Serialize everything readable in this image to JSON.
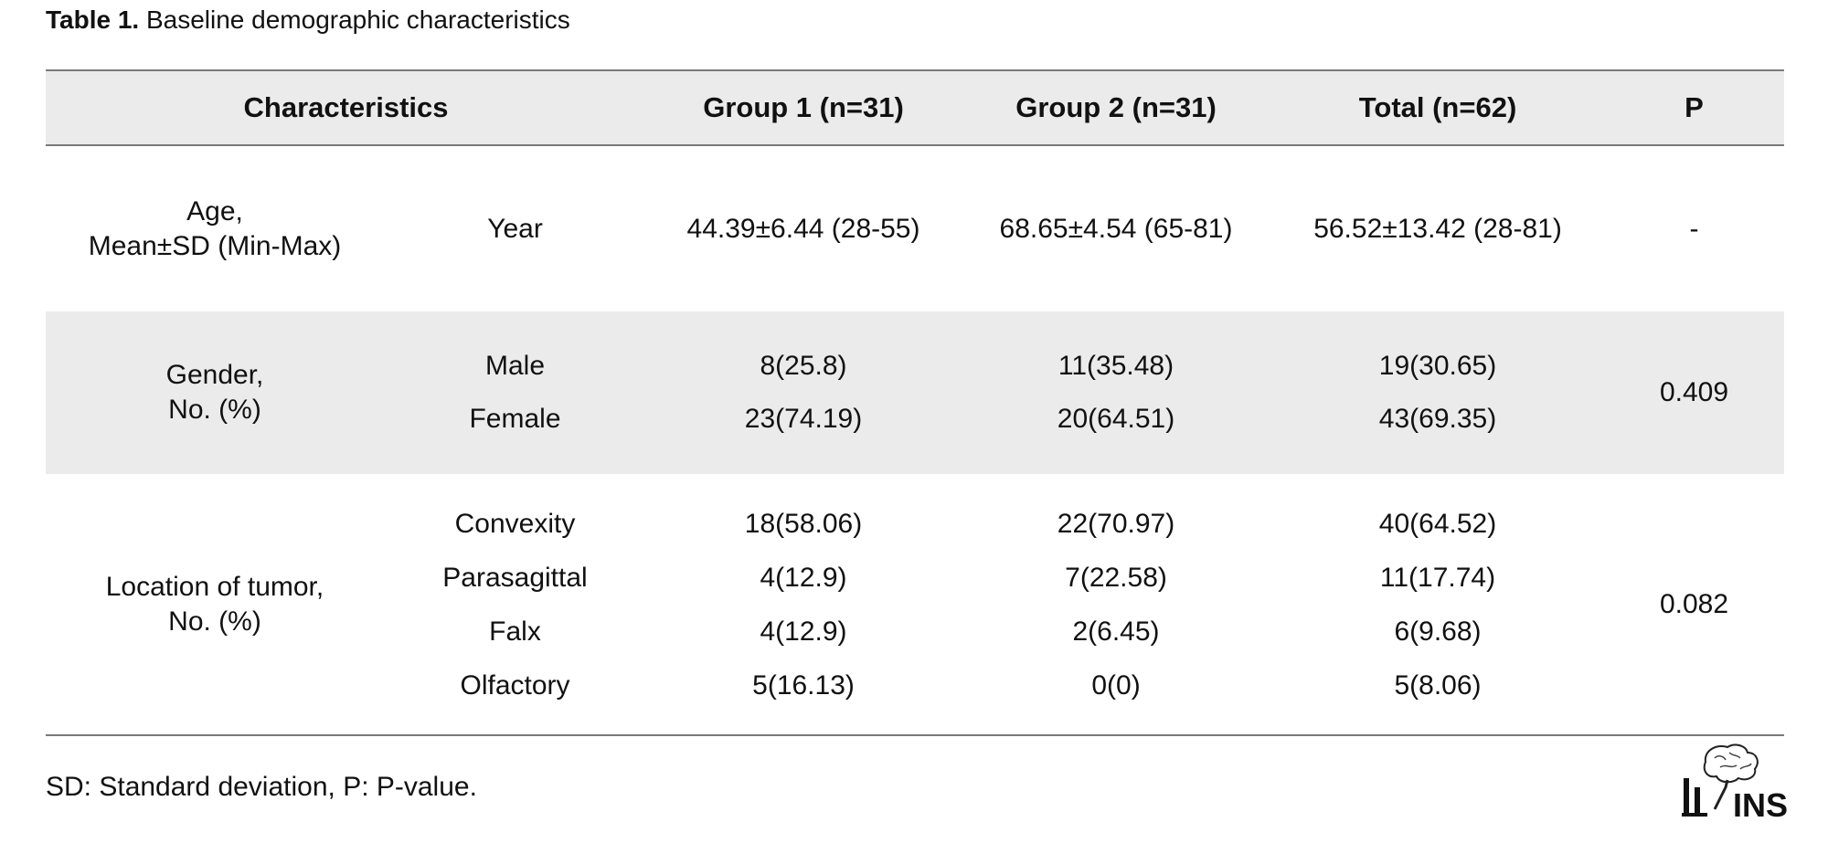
{
  "caption": {
    "label": "Table 1.",
    "text": "Baseline demographic characteristics"
  },
  "table": {
    "headers": {
      "characteristics": "Characteristics",
      "group1": "Group 1 (n=31)",
      "group2": "Group 2 (n=31)",
      "total": "Total (n=62)",
      "p": "P"
    },
    "age": {
      "label_line1": "Age,",
      "label_line2": "Mean±SD (Min-Max)",
      "sub": "Year",
      "group1": "44.39±6.44 (28-55)",
      "group2": "68.65±4.54 (65-81)",
      "total": "56.52±13.42 (28-81)",
      "p": "-"
    },
    "gender": {
      "label_line1": "Gender,",
      "label_line2": "No. (%)",
      "rows": [
        {
          "sub": "Male",
          "group1": "8(25.8)",
          "group2": "11(35.48)",
          "total": "19(30.65)"
        },
        {
          "sub": "Female",
          "group1": "23(74.19)",
          "group2": "20(64.51)",
          "total": "43(69.35)"
        }
      ],
      "p": "0.409"
    },
    "location": {
      "label_line1": "Location of tumor,",
      "label_line2": "No. (%)",
      "rows": [
        {
          "sub": "Convexity",
          "group1": "18(58.06)",
          "group2": "22(70.97)",
          "total": "40(64.52)"
        },
        {
          "sub": "Parasagittal",
          "group1": "4(12.9)",
          "group2": "7(22.58)",
          "total": "11(17.74)"
        },
        {
          "sub": "Falx",
          "group1": "4(12.9)",
          "group2": "2(6.45)",
          "total": "6(9.68)"
        },
        {
          "sub": "Olfactory",
          "group1": "5(16.13)",
          "group2": "0(0)",
          "total": "5(8.06)"
        }
      ],
      "p": "0.082"
    }
  },
  "footnote": "SD: Standard deviation, P: P-value.",
  "logo": {
    "text": "INS",
    "icon": "brain-spine-logo-icon"
  },
  "colors": {
    "header_bg": "#ebebeb",
    "rule": "#7a7a7a",
    "text": "#111111"
  }
}
